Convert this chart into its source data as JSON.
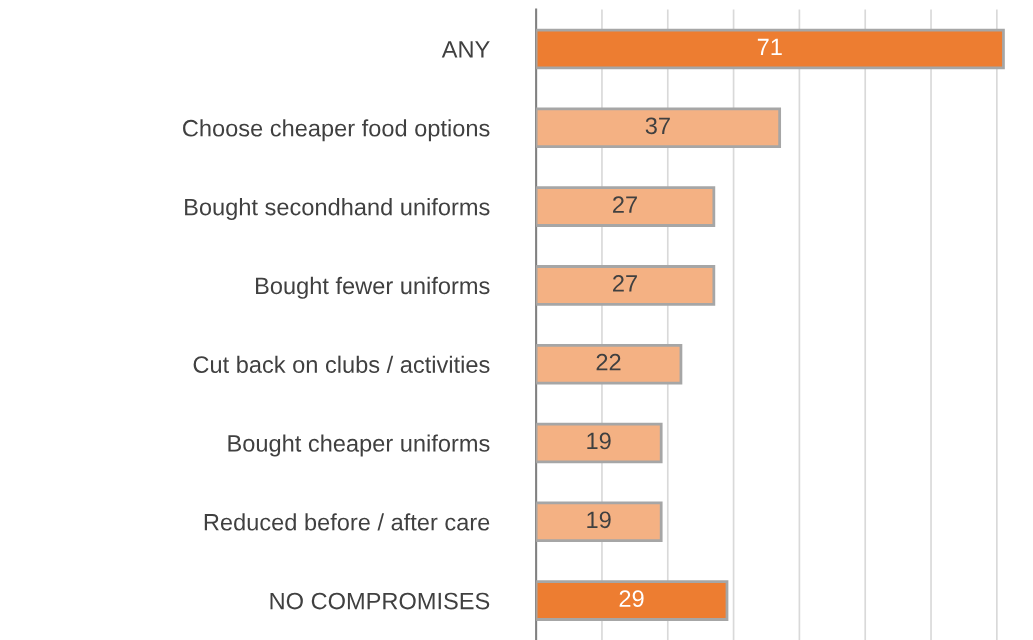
{
  "chart_data": {
    "type": "bar",
    "orientation": "horizontal",
    "categories": [
      "ANY",
      "Choose cheaper food options",
      "Bought secondhand uniforms",
      "Bought fewer uniforms",
      "Cut back on clubs / activities",
      "Bought cheaper uniforms",
      "Reduced before / after care",
      "NO COMPROMISES"
    ],
    "values": [
      71,
      37,
      27,
      27,
      22,
      19,
      19,
      29
    ],
    "colors": [
      "#ed7d31",
      "#f4b183",
      "#f4b183",
      "#f4b183",
      "#f4b183",
      "#f4b183",
      "#f4b183",
      "#ed7d31"
    ],
    "xticks": [
      {
        "value": 0,
        "label": null
      },
      {
        "value": 10,
        "label": null
      },
      {
        "value": 20,
        "label": null
      },
      {
        "value": 30,
        "label": null
      },
      {
        "value": 40,
        "label": null
      },
      {
        "value": 50,
        "label": null
      },
      {
        "value": 60,
        "label": null
      },
      {
        "value": 70,
        "label": null
      }
    ],
    "grid": "x",
    "tick_labels": "y",
    "data_labels": true,
    "legend": false
  }
}
